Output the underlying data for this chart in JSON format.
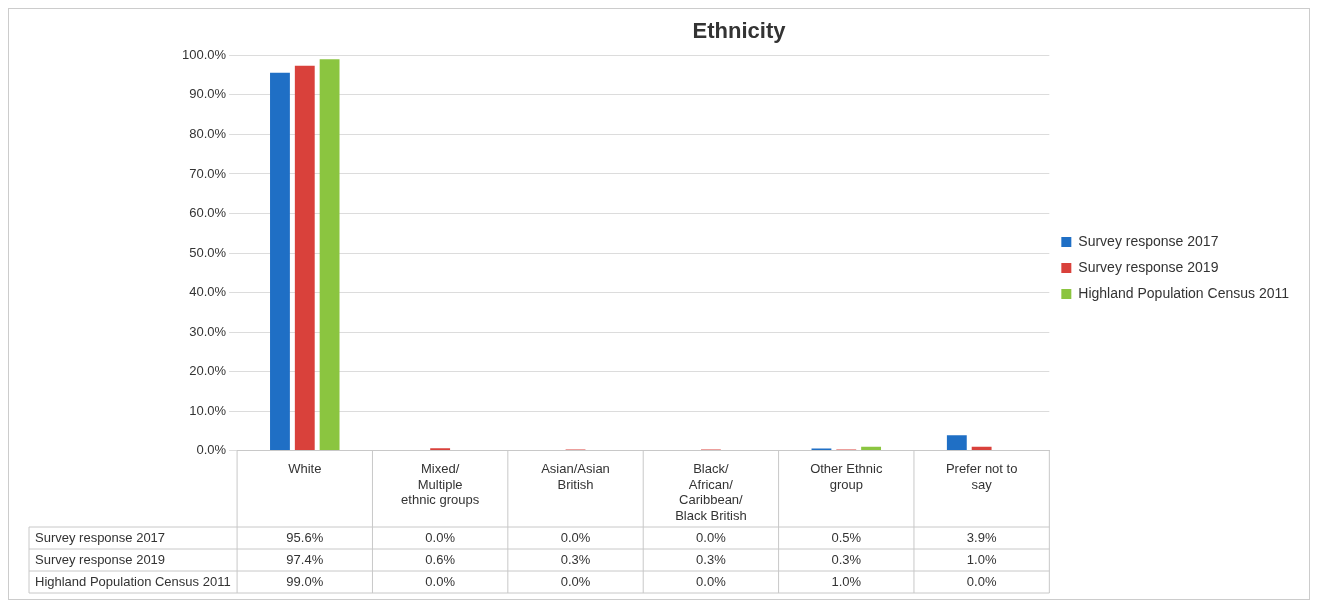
{
  "chart_data": {
    "type": "bar",
    "title": "Ethnicity",
    "categories": [
      "White",
      "Mixed/Multiple ethnic groups",
      "Asian/Asian British",
      "Black/African/Caribbean/Black British",
      "Other Ethnic group",
      "Prefer not to say"
    ],
    "series": [
      {
        "name": "Survey response 2017",
        "color": "#1f6fc5",
        "values": [
          95.6,
          0.0,
          0.0,
          0.0,
          0.5,
          3.9
        ],
        "value_labels": [
          "95.6%",
          "0.0%",
          "0.0%",
          "0.0%",
          "0.5%",
          "3.9%"
        ]
      },
      {
        "name": "Survey response 2019",
        "color": "#d9413b",
        "values": [
          97.4,
          0.6,
          0.3,
          0.3,
          0.3,
          1.0
        ],
        "value_labels": [
          "97.4%",
          "0.6%",
          "0.3%",
          "0.3%",
          "0.3%",
          "1.0%"
        ]
      },
      {
        "name": "Highland Population Census 2011",
        "color": "#8bc540",
        "values": [
          99.0,
          0.0,
          0.0,
          0.0,
          1.0,
          0.0
        ],
        "value_labels": [
          "99.0%",
          "0.0%",
          "0.0%",
          "0.0%",
          "1.0%",
          "0.0%"
        ]
      }
    ],
    "ylim": [
      0,
      100
    ],
    "yticks": [
      {
        "value": 0,
        "label": "0.0%"
      },
      {
        "value": 10,
        "label": "10.0%"
      },
      {
        "value": 20,
        "label": "20.0%"
      },
      {
        "value": 30,
        "label": "30.0%"
      },
      {
        "value": 40,
        "label": "40.0%"
      },
      {
        "value": 50,
        "label": "50.0%"
      },
      {
        "value": 60,
        "label": "60.0%"
      },
      {
        "value": 70,
        "label": "70.0%"
      },
      {
        "value": 80,
        "label": "80.0%"
      },
      {
        "value": 90,
        "label": "90.0%"
      },
      {
        "value": 100,
        "label": "100.0%"
      }
    ],
    "grid": "y",
    "legend": "right"
  }
}
